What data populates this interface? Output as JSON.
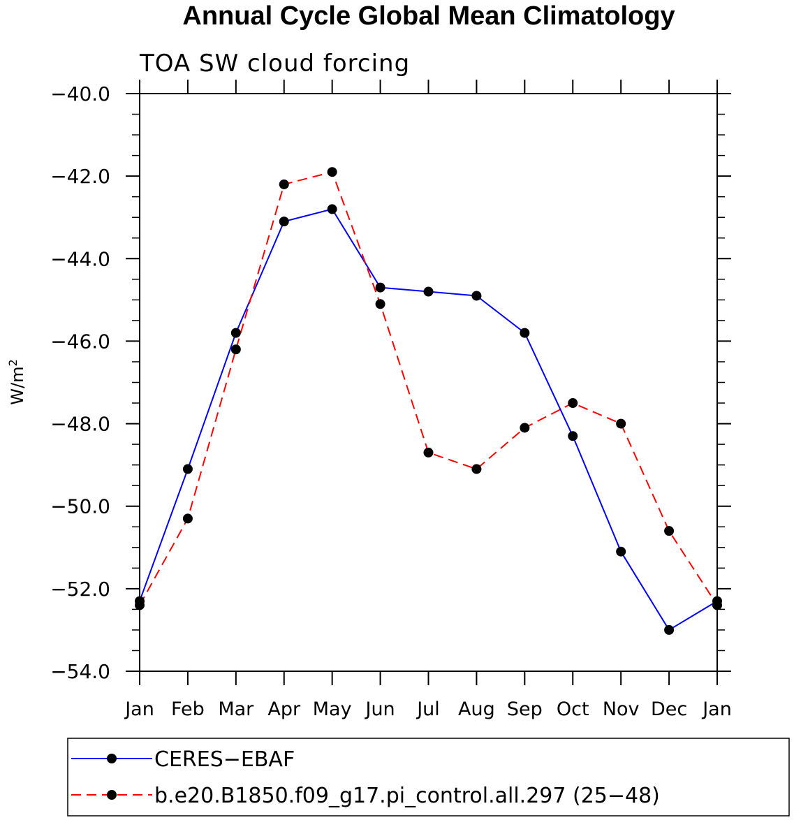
{
  "chart_data": {
    "type": "line",
    "title": "Annual Cycle Global Mean Climatology",
    "subtitle": "TOA SW cloud forcing",
    "ylabel": "W/m",
    "ylabel_sup": "2",
    "ylim": [
      -54.0,
      -40.0
    ],
    "yticks": [
      -54.0,
      -52.0,
      -50.0,
      -48.0,
      -46.0,
      -44.0,
      -42.0,
      -40.0
    ],
    "ytick_labels": [
      "−54.0",
      "−52.0",
      "−50.0",
      "−48.0",
      "−46.0",
      "−44.0",
      "−42.0",
      "−40.0"
    ],
    "categories": [
      "Jan",
      "Feb",
      "Mar",
      "Apr",
      "May",
      "Jun",
      "Jul",
      "Aug",
      "Sep",
      "Oct",
      "Nov",
      "Dec",
      "Jan"
    ],
    "legend_position": "bottom",
    "grid": false,
    "series": [
      {
        "name": "CERES−EBAF",
        "color": "#0000ff",
        "dash": "solid",
        "values": [
          -52.3,
          -49.1,
          -45.8,
          -43.1,
          -42.8,
          -44.7,
          -44.8,
          -44.9,
          -45.8,
          -48.3,
          -51.1,
          -53.0,
          -52.3
        ]
      },
      {
        "name": "b.e20.B1850.f09_g17.pi_control.all.297 (25−48)",
        "color": "#ff0000",
        "dash": "dashed",
        "values": [
          -52.4,
          -50.3,
          -46.2,
          -42.2,
          -41.9,
          -45.1,
          -48.7,
          -49.1,
          -48.1,
          -47.5,
          -48.0,
          -50.6,
          -52.4
        ]
      }
    ]
  }
}
